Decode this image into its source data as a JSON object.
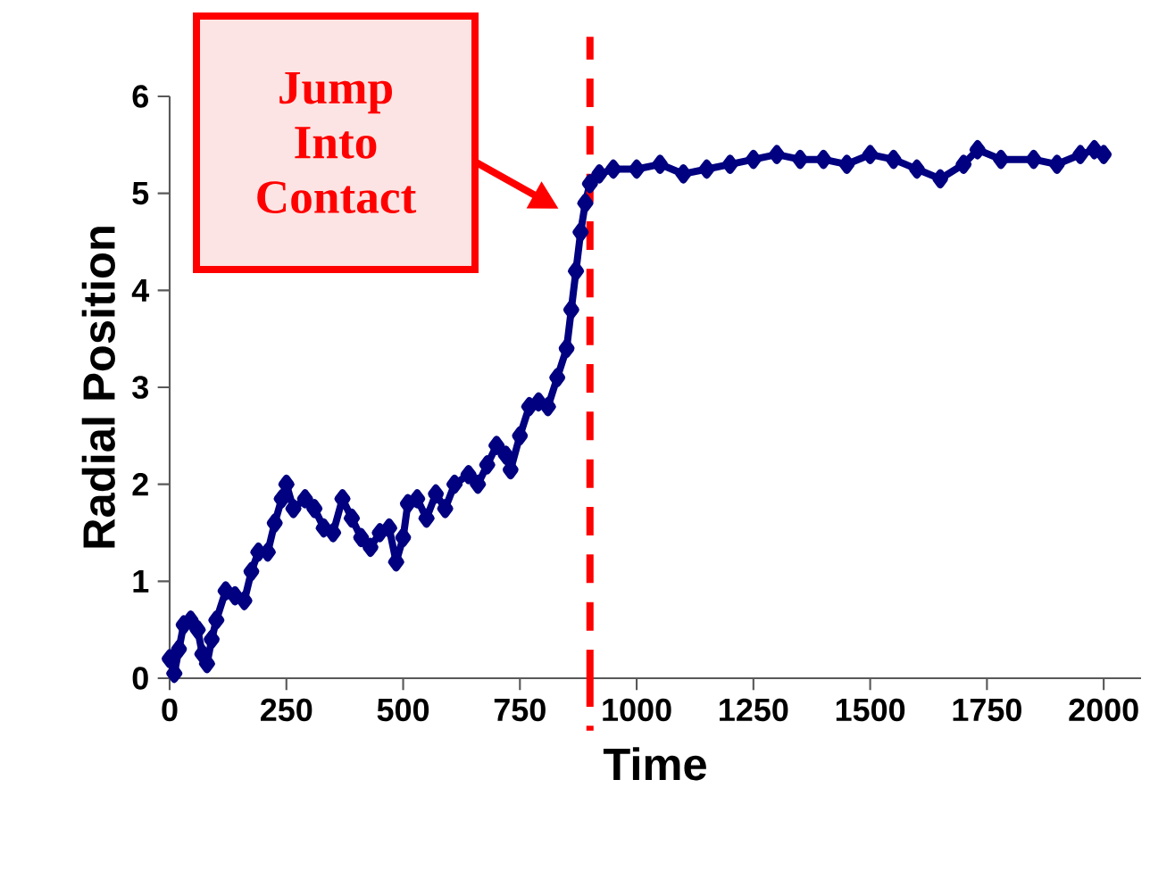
{
  "chart_data": {
    "type": "line",
    "xlabel": "Time",
    "ylabel": "Radial Position",
    "marker": "diamond",
    "line_style": "solid",
    "xlim": [
      0,
      2080
    ],
    "ylim": [
      0,
      6
    ],
    "xticks": [
      0,
      250,
      500,
      750,
      1000,
      1250,
      1500,
      1750,
      2000
    ],
    "yticks": [
      0,
      1,
      2,
      3,
      4,
      5,
      6
    ],
    "series": [
      {
        "color": "#000080",
        "x": [
          0,
          10,
          20,
          30,
          45,
          60,
          70,
          80,
          90,
          100,
          120,
          140,
          160,
          175,
          190,
          210,
          225,
          240,
          250,
          265,
          290,
          310,
          330,
          350,
          370,
          390,
          410,
          430,
          450,
          470,
          485,
          500,
          510,
          530,
          550,
          570,
          590,
          610,
          640,
          660,
          680,
          700,
          720,
          730,
          750,
          770,
          790,
          810,
          830,
          850,
          860,
          870,
          880,
          890,
          900,
          920,
          950,
          1000,
          1050,
          1100,
          1150,
          1200,
          1250,
          1300,
          1350,
          1400,
          1450,
          1500,
          1550,
          1600,
          1650,
          1700,
          1730,
          1780,
          1850,
          1900,
          1950,
          1980,
          2000
        ],
        "values": [
          0.2,
          0.05,
          0.3,
          0.55,
          0.6,
          0.5,
          0.25,
          0.15,
          0.4,
          0.6,
          0.9,
          0.85,
          0.8,
          1.1,
          1.3,
          1.3,
          1.6,
          1.85,
          2.0,
          1.75,
          1.85,
          1.75,
          1.55,
          1.5,
          1.85,
          1.65,
          1.45,
          1.35,
          1.5,
          1.55,
          1.2,
          1.45,
          1.8,
          1.85,
          1.65,
          1.9,
          1.75,
          2.0,
          2.1,
          2.0,
          2.2,
          2.4,
          2.3,
          2.15,
          2.5,
          2.8,
          2.85,
          2.8,
          3.1,
          3.4,
          3.8,
          4.2,
          4.6,
          4.9,
          5.1,
          5.2,
          5.25,
          5.25,
          5.3,
          5.2,
          5.25,
          5.3,
          5.35,
          5.4,
          5.35,
          5.35,
          5.3,
          5.4,
          5.35,
          5.25,
          5.15,
          5.3,
          5.45,
          5.35,
          5.35,
          5.3,
          5.4,
          5.45,
          5.4
        ]
      }
    ],
    "ref_lines": [
      {
        "axis": "x",
        "value": 900,
        "color": "#ff0000",
        "line_style": "dashed"
      }
    ],
    "annotations": [
      "Jump Into Contact"
    ]
  }
}
